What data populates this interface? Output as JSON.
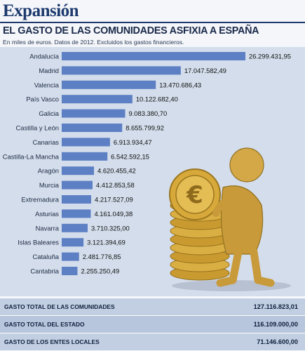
{
  "masthead": {
    "brand": "Expansión"
  },
  "headline": "EL GASTO DE LAS COMUNIDADES ASFIXIA A ESPAÑA",
  "subtitle": "En miles de euros. Datos de 2012. Excluidos los gastos financieros.",
  "colors": {
    "bar": "#5d7fc4",
    "panel": "#d3ddeb",
    "brand": "#1e3a6e",
    "coin": "#d6a93a",
    "figure": "#c89a3a"
  },
  "illustration": {
    "icon": "figure-holding-euro-coin-stack-icon"
  },
  "chart_data": {
    "type": "bar",
    "orientation": "horizontal",
    "categories": [
      "Andalucía",
      "Madrid",
      "Valencia",
      "País Vasco",
      "Galicia",
      "Castilla y León",
      "Canarias",
      "Castilla-La Mancha",
      "Aragón",
      "Murcia",
      "Extremadura",
      "Asturias",
      "Navarra",
      "Islas Baleares",
      "Cataluña",
      "Cantabria"
    ],
    "values": [
      26299431.95,
      17047582.49,
      13470686.43,
      10122682.4,
      9083380.7,
      8655799.92,
      6913934.47,
      6542592.15,
      4620455.42,
      4412853.58,
      4217527.09,
      4161049.38,
      3710325.0,
      3121394.69,
      2481776.85,
      2255250.49
    ],
    "value_labels": [
      "26.299.431,95",
      "17.047.582,49",
      "13.470.686,43",
      "10.122.682,40",
      "9.083.380,70",
      "8.655.799,92",
      "6.913.934,47",
      "6.542.592,15",
      "4.620.455,42",
      "4.412.853,58",
      "4.217.527,09",
      "4.161.049,38",
      "3.710.325,00",
      "3.121.394,69",
      "2.481.776,85",
      "2.255.250,49"
    ],
    "grid": false
  },
  "totals": [
    {
      "label": "GASTO TOTAL DE LAS COMUNIDADES",
      "value": "127.116.823,01"
    },
    {
      "label": "GASTO TOTAL DEL ESTADO",
      "value": "116.109.000,00"
    },
    {
      "label": "GASTO DE LOS ENTES LOCALES",
      "value": "71.146.600,00"
    }
  ]
}
